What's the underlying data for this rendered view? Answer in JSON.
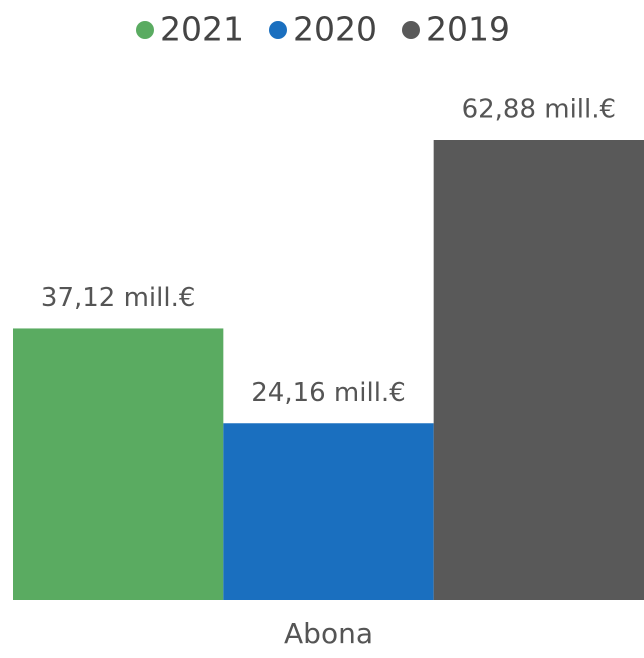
{
  "chart_data": {
    "type": "bar",
    "categories": [
      "Abona"
    ],
    "series": [
      {
        "name": "2021",
        "color": "#5aab61",
        "values": [
          37.12
        ],
        "value_labels": [
          "37,12 mill.€"
        ]
      },
      {
        "name": "2020",
        "color": "#1a6fbf",
        "values": [
          24.16
        ],
        "value_labels": [
          "24,16 mill.€"
        ]
      },
      {
        "name": "2019",
        "color": "#595959",
        "values": [
          62.88
        ],
        "value_labels": [
          "62,88 mill.€"
        ]
      }
    ]
  }
}
